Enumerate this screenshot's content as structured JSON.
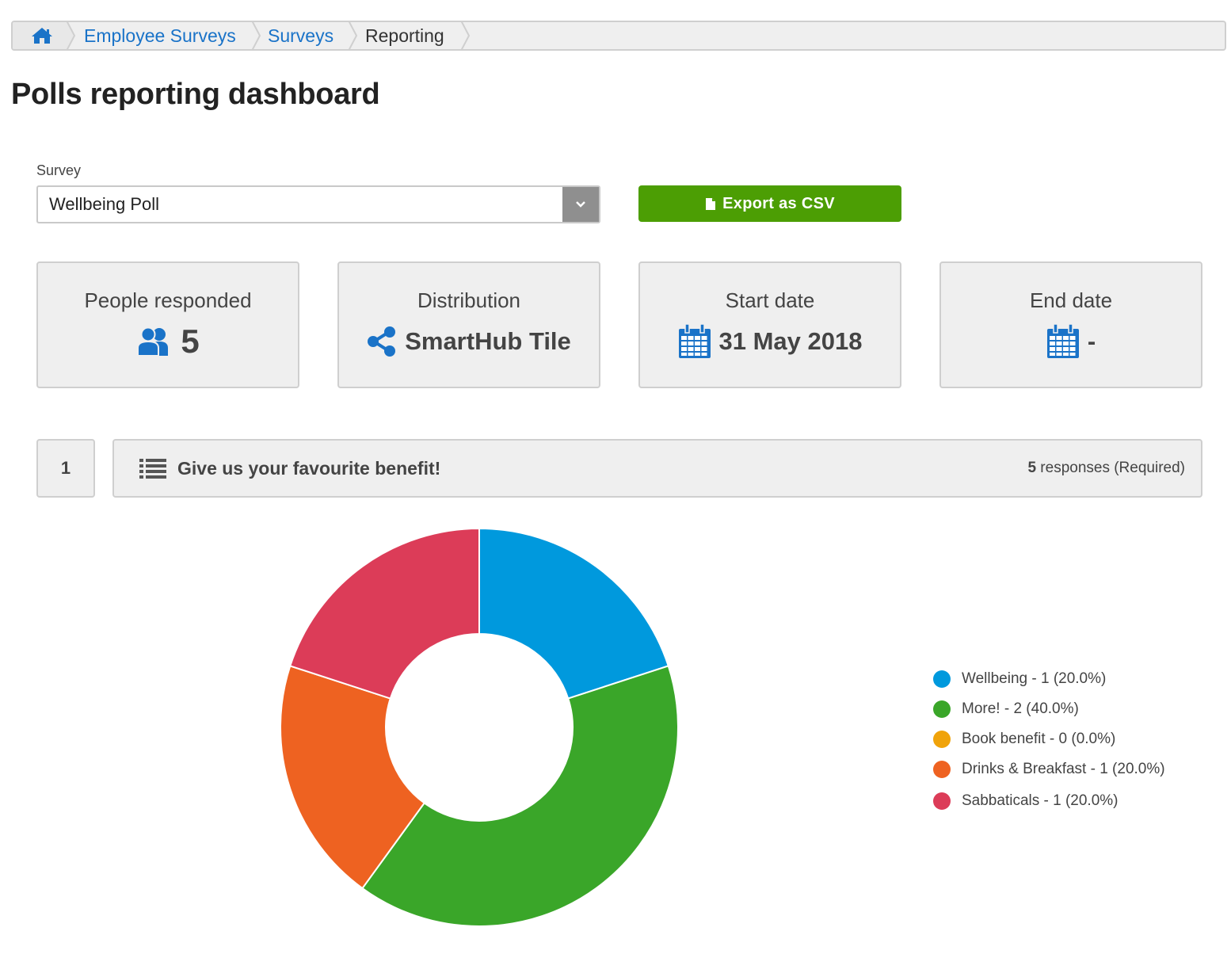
{
  "breadcrumb": {
    "home_icon": "home-icon",
    "items": [
      "Employee Surveys",
      "Surveys",
      "Reporting"
    ]
  },
  "page": {
    "title": "Polls reporting dashboard"
  },
  "survey": {
    "label": "Survey",
    "selected": "Wellbeing Poll"
  },
  "export": {
    "label": "Export as CSV",
    "icon": "file-icon",
    "color": "#4c9e04"
  },
  "stats": {
    "responded": {
      "label": "People responded",
      "value": "5",
      "icon": "users-icon"
    },
    "distribution": {
      "label": "Distribution",
      "value": "SmartHub Tile",
      "icon": "share-icon"
    },
    "start": {
      "label": "Start date",
      "value": "31 May 2018",
      "icon": "calendar-icon"
    },
    "end": {
      "label": "End date",
      "value": "-",
      "icon": "calendar-icon"
    }
  },
  "question": {
    "number": "1",
    "icon": "list-icon",
    "text": "Give us your favourite benefit!",
    "response_count": "5",
    "response_suffix": " responses (Required)"
  },
  "chart_data": {
    "type": "pie",
    "donut": true,
    "categories": [
      "Wellbeing",
      "More!",
      "Book benefit",
      "Drinks & Breakfast",
      "Sabbaticals"
    ],
    "values": [
      1,
      2,
      0,
      1,
      1
    ],
    "percentages": [
      20.0,
      40.0,
      0.0,
      20.0,
      20.0
    ],
    "colors": [
      "#0099dd",
      "#3aa629",
      "#f0a30a",
      "#ee6221",
      "#dc3c58"
    ],
    "legend": [
      "Wellbeing - 1 (20.0%)",
      "More! - 2 (40.0%)",
      "Book benefit - 0 (0.0%)",
      "Drinks & Breakfast - 1 (20.0%)",
      "Sabbaticals - 1 (20.0%)"
    ],
    "legend_position": "right"
  }
}
